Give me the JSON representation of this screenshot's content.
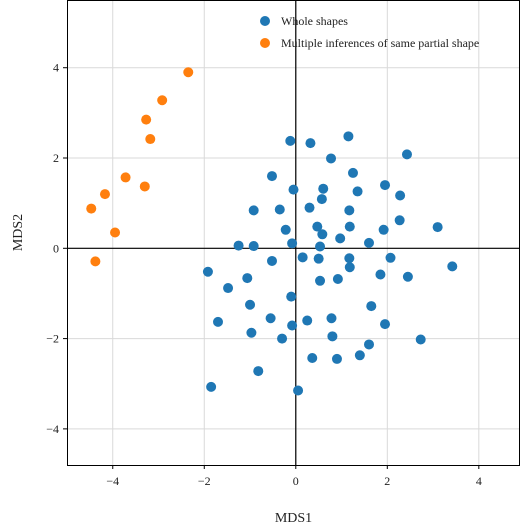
{
  "chart_data": {
    "type": "scatter",
    "xlabel": "MDS1",
    "ylabel": "MDS2",
    "xlim": [
      -5.0,
      4.9
    ],
    "ylim": [
      -4.8,
      5.5
    ],
    "xticks": [
      -4,
      -2,
      0,
      2,
      4
    ],
    "yticks": [
      -4,
      -2,
      0,
      2,
      4
    ],
    "xtick_labels": [
      "−4",
      "−2",
      "0",
      "2",
      "4"
    ],
    "ytick_labels": [
      "−4",
      "−2",
      "0",
      "2",
      "4"
    ],
    "grid": true,
    "zero_lines": true,
    "legend_position": "top-right",
    "series": [
      {
        "name": "Whole shapes",
        "color": "#1f77b4",
        "points": [
          [
            1.15,
            2.48
          ],
          [
            -0.12,
            2.38
          ],
          [
            0.32,
            2.33
          ],
          [
            2.43,
            2.08
          ],
          [
            0.77,
            1.99
          ],
          [
            1.25,
            1.67
          ],
          [
            -0.52,
            1.6
          ],
          [
            1.95,
            1.4
          ],
          [
            0.6,
            1.32
          ],
          [
            -0.05,
            1.3
          ],
          [
            1.35,
            1.26
          ],
          [
            2.28,
            1.17
          ],
          [
            0.57,
            1.09
          ],
          [
            0.3,
            0.9
          ],
          [
            -0.35,
            0.86
          ],
          [
            -0.92,
            0.84
          ],
          [
            1.17,
            0.84
          ],
          [
            2.27,
            0.62
          ],
          [
            0.47,
            0.48
          ],
          [
            1.18,
            0.48
          ],
          [
            -0.22,
            0.41
          ],
          [
            3.1,
            0.47
          ],
          [
            1.92,
            0.41
          ],
          [
            0.97,
            0.22
          ],
          [
            0.58,
            0.31
          ],
          [
            -0.08,
            0.11
          ],
          [
            1.6,
            0.12
          ],
          [
            -1.25,
            0.06
          ],
          [
            -0.92,
            0.05
          ],
          [
            0.53,
            0.04
          ],
          [
            0.15,
            -0.2
          ],
          [
            0.5,
            -0.23
          ],
          [
            1.17,
            -0.22
          ],
          [
            2.07,
            -0.21
          ],
          [
            -0.52,
            -0.28
          ],
          [
            1.18,
            -0.42
          ],
          [
            3.42,
            -0.4
          ],
          [
            -1.92,
            -0.52
          ],
          [
            1.85,
            -0.58
          ],
          [
            0.92,
            -0.68
          ],
          [
            0.53,
            -0.72
          ],
          [
            2.45,
            -0.63
          ],
          [
            -1.06,
            -0.66
          ],
          [
            -1.48,
            -0.88
          ],
          [
            -0.1,
            -1.07
          ],
          [
            -1.0,
            -1.25
          ],
          [
            1.65,
            -1.28
          ],
          [
            -0.55,
            -1.55
          ],
          [
            0.78,
            -1.55
          ],
          [
            -1.7,
            -1.63
          ],
          [
            0.25,
            -1.6
          ],
          [
            1.95,
            -1.68
          ],
          [
            -0.08,
            -1.71
          ],
          [
            -0.97,
            -1.87
          ],
          [
            0.8,
            -1.95
          ],
          [
            -0.3,
            -2.0
          ],
          [
            2.73,
            -2.02
          ],
          [
            1.6,
            -2.13
          ],
          [
            1.4,
            -2.37
          ],
          [
            0.36,
            -2.43
          ],
          [
            0.9,
            -2.45
          ],
          [
            -0.82,
            -2.72
          ],
          [
            -1.85,
            -3.07
          ],
          [
            0.05,
            -3.15
          ]
        ]
      },
      {
        "name": "Multiple inferences of same partial shape",
        "color": "#ff7f0e",
        "points": [
          [
            -2.35,
            3.9
          ],
          [
            -2.92,
            3.28
          ],
          [
            -3.27,
            2.85
          ],
          [
            -3.18,
            2.42
          ],
          [
            -3.72,
            1.57
          ],
          [
            -3.3,
            1.37
          ],
          [
            -4.17,
            1.2
          ],
          [
            -4.47,
            0.88
          ],
          [
            -3.95,
            0.35
          ],
          [
            -4.38,
            -0.29
          ]
        ]
      }
    ]
  }
}
